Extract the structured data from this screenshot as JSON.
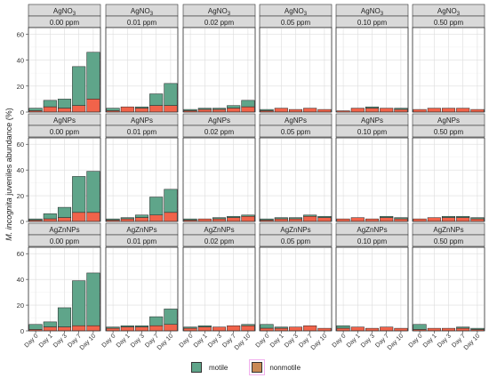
{
  "chart_data": {
    "type": "bar",
    "stacked": true,
    "ylabel_italic": "M. incognita",
    "ylabel_rest": " juveniles abundance (%)",
    "x_categories": [
      "Day 0",
      "Day 1",
      "Day 3",
      "Day 7",
      "Day 10"
    ],
    "ylim": [
      0,
      65
    ],
    "yticks": [
      0,
      20,
      40,
      60
    ],
    "grid": true,
    "legend_position": "bottom",
    "series_names": [
      "motile",
      "nonmotile"
    ],
    "colors": {
      "motile": "#5fa58a",
      "nonmotile": "#f1634a",
      "nonmotile_legend": "#c98a55"
    },
    "row_strips": [
      {
        "label": "AgNO",
        "sub": "3"
      },
      {
        "label": "AgNPs",
        "sub": ""
      },
      {
        "label": "AgZnNPs",
        "sub": ""
      }
    ],
    "col_strips": [
      "0.00 ppm",
      "0.01 ppm",
      "0.02 ppm",
      "0.05 ppm",
      "0.10 ppm",
      "0.50 ppm"
    ],
    "panels": [
      [
        {
          "total": [
            3,
            9,
            10,
            35,
            46
          ],
          "nonmotile": [
            1,
            4,
            3,
            5,
            10
          ]
        },
        {
          "total": [
            3,
            4,
            4,
            14,
            22
          ],
          "nonmotile": [
            1,
            4,
            3,
            5,
            5
          ]
        },
        {
          "total": [
            2,
            3,
            3,
            5,
            9
          ],
          "nonmotile": [
            1,
            2,
            2,
            3,
            4
          ]
        },
        {
          "total": [
            2,
            3,
            2,
            3,
            2
          ],
          "nonmotile": [
            1,
            3,
            2,
            3,
            2
          ]
        },
        {
          "total": [
            1,
            3,
            4,
            3,
            3
          ],
          "nonmotile": [
            1,
            3,
            3,
            3,
            2
          ]
        },
        {
          "total": [
            2,
            3,
            3,
            3,
            2
          ],
          "nonmotile": [
            2,
            3,
            3,
            3,
            2
          ]
        }
      ],
      [
        {
          "total": [
            2,
            6,
            11,
            35,
            39
          ],
          "nonmotile": [
            1,
            2,
            3,
            7,
            7
          ]
        },
        {
          "total": [
            2,
            3,
            5,
            19,
            25
          ],
          "nonmotile": [
            1,
            2,
            3,
            5,
            7
          ]
        },
        {
          "total": [
            2,
            2,
            3,
            4,
            5
          ],
          "nonmotile": [
            1,
            2,
            2,
            3,
            4
          ]
        },
        {
          "total": [
            2,
            3,
            3,
            5,
            4
          ],
          "nonmotile": [
            1,
            2,
            2,
            4,
            3
          ]
        },
        {
          "total": [
            2,
            3,
            2,
            4,
            3
          ],
          "nonmotile": [
            2,
            3,
            2,
            3,
            2
          ]
        },
        {
          "total": [
            2,
            3,
            4,
            4,
            3
          ],
          "nonmotile": [
            2,
            3,
            3,
            3,
            2
          ]
        }
      ],
      [
        {
          "total": [
            5,
            7,
            18,
            39,
            45
          ],
          "nonmotile": [
            1,
            3,
            3,
            4,
            4
          ]
        },
        {
          "total": [
            3,
            4,
            4,
            11,
            17
          ],
          "nonmotile": [
            2,
            3,
            3,
            4,
            5
          ]
        },
        {
          "total": [
            3,
            4,
            3,
            4,
            5
          ],
          "nonmotile": [
            2,
            3,
            3,
            4,
            4
          ]
        },
        {
          "total": [
            5,
            3,
            3,
            4,
            2
          ],
          "nonmotile": [
            2,
            2,
            3,
            4,
            2
          ]
        },
        {
          "total": [
            4,
            3,
            2,
            3,
            2
          ],
          "nonmotile": [
            2,
            3,
            2,
            3,
            2
          ]
        },
        {
          "total": [
            5,
            2,
            2,
            3,
            2
          ],
          "nonmotile": [
            1,
            2,
            2,
            2,
            1
          ]
        }
      ]
    ]
  }
}
